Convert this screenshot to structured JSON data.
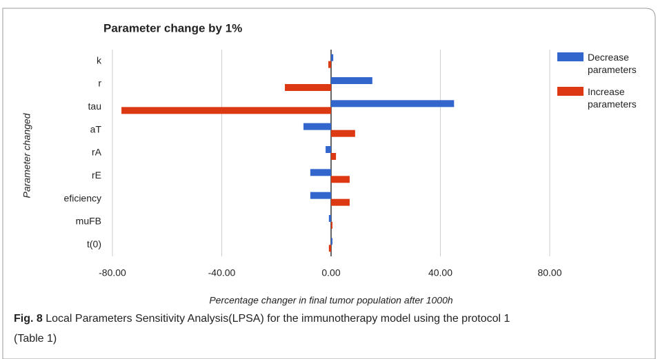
{
  "chart_data": {
    "type": "hbar",
    "title": "Parameter change by 1%",
    "x_label": "Percentage changer in final tumor population after 1000h",
    "y_label": "Parameter changed",
    "categories": [
      "k",
      "r",
      "tau",
      "aT",
      "rA",
      "rE",
      "eficiency",
      "muFB",
      "t(0)"
    ],
    "series": [
      {
        "name": "Decrease parameters",
        "color": "#3366cc",
        "values": [
          0.8,
          15.1,
          45,
          -10.1,
          -2.0,
          -7.6,
          -7.6,
          -0.8,
          0.5
        ]
      },
      {
        "name": "Increase parameters",
        "color": "#dc3912",
        "values": [
          -1.0,
          -16.9,
          -76.7,
          8.8,
          1.8,
          6.8,
          6.8,
          0.5,
          -0.8
        ]
      }
    ],
    "xlim": [
      -80,
      80
    ],
    "xticks": [
      {
        "value": -80,
        "label": "-80.00"
      },
      {
        "value": -40,
        "label": "-40.00"
      },
      {
        "value": 0,
        "label": "0.00"
      },
      {
        "value": 40,
        "label": "40.00"
      },
      {
        "value": 80,
        "label": "80.00"
      }
    ],
    "grid": true,
    "legend": "right"
  },
  "caption": {
    "label": "Fig. 8",
    "text": "Local Parameters Sensitivity Analysis(LPSA) for the immunotherapy model using the protocol 1 (Table 1)"
  }
}
